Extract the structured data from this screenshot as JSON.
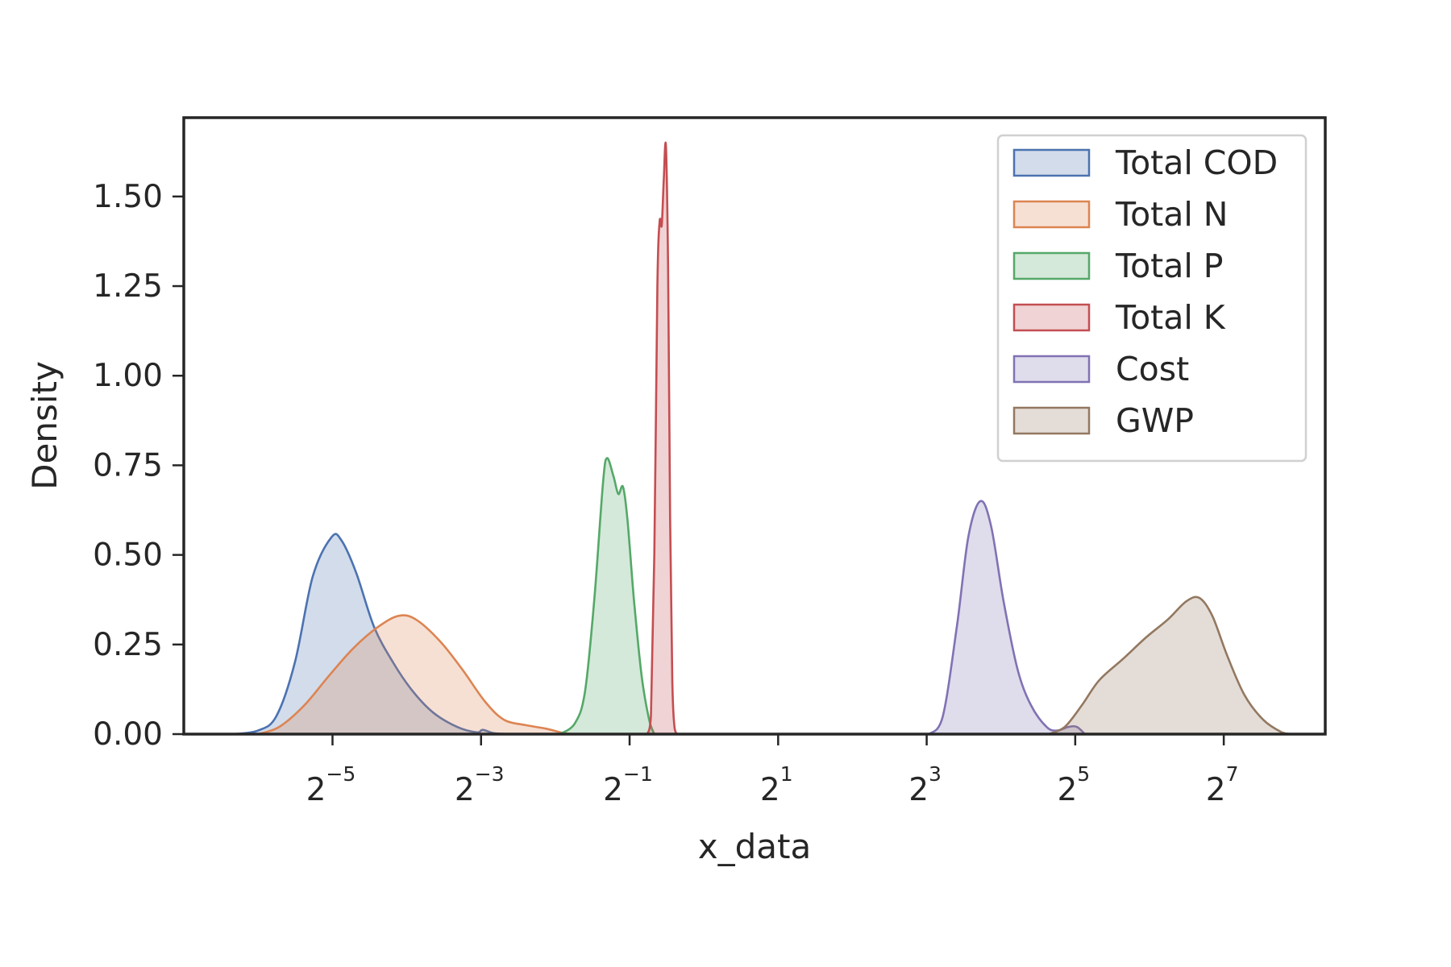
{
  "chart_data": {
    "type": "area",
    "title": "",
    "xlabel": "x_data",
    "ylabel": "Density",
    "x_scale": "log2",
    "xlim": [
      0.0078,
      330
    ],
    "ylim": [
      0,
      1.72
    ],
    "x_ticks": [
      {
        "base": "2",
        "exp": "−5",
        "value": 0.03125
      },
      {
        "base": "2",
        "exp": "−3",
        "value": 0.125
      },
      {
        "base": "2",
        "exp": "−1",
        "value": 0.5
      },
      {
        "base": "2",
        "exp": "1",
        "value": 2
      },
      {
        "base": "2",
        "exp": "3",
        "value": 8
      },
      {
        "base": "2",
        "exp": "5",
        "value": 32
      },
      {
        "base": "2",
        "exp": "7",
        "value": 128
      }
    ],
    "y_ticks": [
      {
        "value": 0.0,
        "label": "0.00"
      },
      {
        "value": 0.25,
        "label": "0.25"
      },
      {
        "value": 0.5,
        "label": "0.50"
      },
      {
        "value": 0.75,
        "label": "0.75"
      },
      {
        "value": 1.0,
        "label": "1.00"
      },
      {
        "value": 1.25,
        "label": "1.25"
      },
      {
        "value": 1.5,
        "label": "1.50"
      }
    ],
    "grid": false,
    "legend_position": "top-right",
    "series": [
      {
        "name": "Total COD",
        "color": "#4c72b0",
        "points": [
          [
            0.0124,
            0
          ],
          [
            0.0156,
            0.01
          ],
          [
            0.0185,
            0.05
          ],
          [
            0.022,
            0.2
          ],
          [
            0.026,
            0.44
          ],
          [
            0.031,
            0.55
          ],
          [
            0.034,
            0.54
          ],
          [
            0.039,
            0.45
          ],
          [
            0.046,
            0.3
          ],
          [
            0.055,
            0.2
          ],
          [
            0.066,
            0.12
          ],
          [
            0.08,
            0.06
          ],
          [
            0.1,
            0.02
          ],
          [
            0.12,
            0.005
          ],
          [
            0.127,
            0.012
          ],
          [
            0.14,
            0.003
          ],
          [
            0.16,
            0
          ]
        ]
      },
      {
        "name": "Total N",
        "color": "#dd8452",
        "points": [
          [
            0.0156,
            0
          ],
          [
            0.019,
            0.02
          ],
          [
            0.024,
            0.08
          ],
          [
            0.03,
            0.16
          ],
          [
            0.038,
            0.24
          ],
          [
            0.048,
            0.3
          ],
          [
            0.058,
            0.33
          ],
          [
            0.068,
            0.32
          ],
          [
            0.085,
            0.26
          ],
          [
            0.105,
            0.18
          ],
          [
            0.13,
            0.09
          ],
          [
            0.155,
            0.04
          ],
          [
            0.19,
            0.025
          ],
          [
            0.23,
            0.015
          ],
          [
            0.27,
            0.003
          ],
          [
            0.3,
            0
          ]
        ]
      },
      {
        "name": "Total P",
        "color": "#55a868",
        "points": [
          [
            0.26,
            0
          ],
          [
            0.3,
            0.03
          ],
          [
            0.33,
            0.12
          ],
          [
            0.36,
            0.38
          ],
          [
            0.39,
            0.7
          ],
          [
            0.405,
            0.77
          ],
          [
            0.43,
            0.72
          ],
          [
            0.45,
            0.67
          ],
          [
            0.47,
            0.69
          ],
          [
            0.49,
            0.6
          ],
          [
            0.52,
            0.38
          ],
          [
            0.56,
            0.16
          ],
          [
            0.6,
            0.04
          ],
          [
            0.63,
            0
          ]
        ]
      },
      {
        "name": "Total K",
        "color": "#c44e52",
        "points": [
          [
            0.59,
            0
          ],
          [
            0.61,
            0.05
          ],
          [
            0.63,
            0.5
          ],
          [
            0.648,
            1.25
          ],
          [
            0.662,
            1.43
          ],
          [
            0.675,
            1.42
          ],
          [
            0.688,
            1.55
          ],
          [
            0.702,
            1.64
          ],
          [
            0.716,
            1.3
          ],
          [
            0.73,
            0.6
          ],
          [
            0.745,
            0.15
          ],
          [
            0.76,
            0.02
          ],
          [
            0.78,
            0
          ]
        ]
      },
      {
        "name": "Cost",
        "color": "#8172b3",
        "points": [
          [
            8.2,
            0
          ],
          [
            9.3,
            0.05
          ],
          [
            10.6,
            0.3
          ],
          [
            11.8,
            0.55
          ],
          [
            13.2,
            0.65
          ],
          [
            14.6,
            0.58
          ],
          [
            16.4,
            0.37
          ],
          [
            18.7,
            0.18
          ],
          [
            21.2,
            0.08
          ],
          [
            24.5,
            0.02
          ],
          [
            27,
            0.01
          ],
          [
            30,
            0.02
          ],
          [
            32.5,
            0.02
          ],
          [
            35,
            0
          ]
        ]
      },
      {
        "name": "GWP",
        "color": "#937860",
        "points": [
          [
            25,
            0
          ],
          [
            29,
            0.02
          ],
          [
            34,
            0.08
          ],
          [
            40,
            0.15
          ],
          [
            50,
            0.21
          ],
          [
            62,
            0.27
          ],
          [
            76,
            0.32
          ],
          [
            90,
            0.37
          ],
          [
            102,
            0.38
          ],
          [
            115,
            0.33
          ],
          [
            132,
            0.22
          ],
          [
            155,
            0.11
          ],
          [
            185,
            0.04
          ],
          [
            220,
            0.005
          ],
          [
            240,
            0
          ]
        ]
      }
    ]
  }
}
